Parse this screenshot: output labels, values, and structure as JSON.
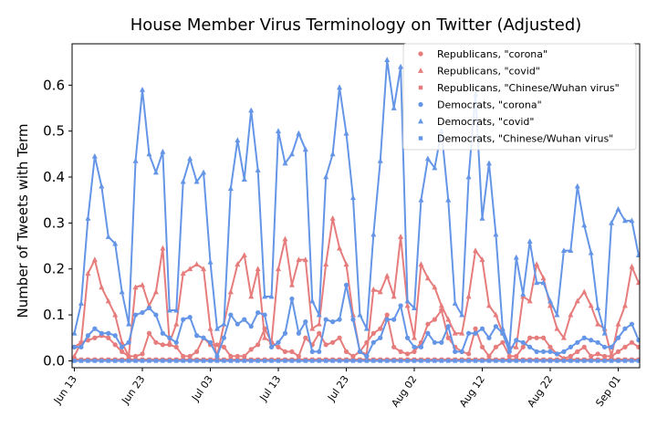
{
  "chart_data": {
    "type": "line",
    "title": "House Member Virus Terminology on Twitter (Adjusted)",
    "xlabel": "",
    "ylabel": "Number of Tweets with Term",
    "ylim": [
      -0.015,
      0.69
    ],
    "yticks": [
      0.0,
      0.1,
      0.2,
      0.3,
      0.4,
      0.5,
      0.6
    ],
    "ytick_labels": [
      "0.0",
      "0.1",
      "0.2",
      "0.3",
      "0.4",
      "0.5",
      "0.6"
    ],
    "x_start": "2020-06-13",
    "xticks": [
      "Jun 13",
      "Jun 23",
      "Jul 03",
      "Jul 13",
      "Jul 23",
      "Aug 02",
      "Aug 12",
      "Aug 22",
      "Sep 01"
    ],
    "legend_position": "top-right",
    "grid": false,
    "colors": {
      "republican": "#e67c7c",
      "democrat": "#6495e6"
    },
    "series": [
      {
        "name": "Republicans, \"corona\"",
        "party": "republican",
        "marker": "circle",
        "values": [
          0.03,
          0.04,
          0.045,
          0.05,
          0.055,
          0.05,
          0.035,
          0.02,
          0.01,
          0.01,
          0.015,
          0.06,
          0.04,
          0.035,
          0.035,
          0.03,
          0.01,
          0.01,
          0.02,
          0.05,
          0.035,
          0.035,
          0.03,
          0.01,
          0.01,
          0.01,
          0.025,
          0.035,
          0.07,
          0.04,
          0.03,
          0.02,
          0.02,
          0.01,
          0.05,
          0.035,
          0.06,
          0.035,
          0.04,
          0.05,
          0.02,
          0.01,
          0.02,
          0.04,
          0.06,
          0.07,
          0.1,
          0.03,
          0.02,
          0.015,
          0.02,
          0.04,
          0.08,
          0.09,
          0.11,
          0.05,
          0.03,
          0.02,
          0.015,
          0.07,
          0.03,
          0.01,
          0.03,
          0.04,
          0.01,
          0.01,
          0.03,
          0.05,
          0.05,
          0.05,
          0.03,
          0.015,
          0.005,
          0.01,
          0.02,
          0.03,
          0.01,
          0.015,
          0.01,
          0.01,
          0.02,
          0.03,
          0.04,
          0.03,
          0.03,
          0.02,
          0.005,
          0.01,
          0.02,
          0.03,
          0.04,
          0.03,
          0.03,
          0.04
        ]
      },
      {
        "name": "Republicans, \"covid\"",
        "party": "republican",
        "marker": "triangle",
        "values": [
          0.01,
          0.04,
          0.19,
          0.22,
          0.16,
          0.13,
          0.1,
          0.04,
          0.01,
          0.16,
          0.165,
          0.12,
          0.15,
          0.245,
          0.04,
          0.08,
          0.19,
          0.2,
          0.21,
          0.2,
          0.07,
          0.01,
          0.08,
          0.15,
          0.21,
          0.23,
          0.14,
          0.2,
          0.05,
          0.04,
          0.2,
          0.265,
          0.165,
          0.22,
          0.22,
          0.07,
          0.08,
          0.21,
          0.31,
          0.245,
          0.21,
          0.1,
          0.02,
          0.015,
          0.155,
          0.15,
          0.185,
          0.14,
          0.27,
          0.12,
          0.05,
          0.21,
          0.18,
          0.16,
          0.12,
          0.09,
          0.06,
          0.06,
          0.14,
          0.24,
          0.22,
          0.12,
          0.1,
          0.06,
          0.03,
          0.03,
          0.14,
          0.13,
          0.21,
          0.18,
          0.12,
          0.07,
          0.05,
          0.1,
          0.13,
          0.15,
          0.12,
          0.08,
          0.07,
          0.01,
          0.08,
          0.12,
          0.205,
          0.17,
          0.165,
          0.17
        ]
      },
      {
        "name": "Republicans, \"Chinese/Wuhan virus\"",
        "party": "republican",
        "marker": "square",
        "values": [
          0.003,
          0.003,
          0.003,
          0.003,
          0.003,
          0.003,
          0.003,
          0.003,
          0.003,
          0.003,
          0.003,
          0.003,
          0.003,
          0.003,
          0.003,
          0.003,
          0.003,
          0.003,
          0.003,
          0.003,
          0.003,
          0.003,
          0.003,
          0.003,
          0.003,
          0.003,
          0.003,
          0.003,
          0.003,
          0.003,
          0.003,
          0.003,
          0.003,
          0.003,
          0.003,
          0.003,
          0.003,
          0.003,
          0.003,
          0.003,
          0.003,
          0.003,
          0.003,
          0.003,
          0.003,
          0.003,
          0.003,
          0.003,
          0.003,
          0.003,
          0.003,
          0.003,
          0.003,
          0.003,
          0.003,
          0.003,
          0.003,
          0.003,
          0.003,
          0.003,
          0.003,
          0.003,
          0.003,
          0.003,
          0.003,
          0.003,
          0.003,
          0.003,
          0.003,
          0.003,
          0.003,
          0.003,
          0.003,
          0.003,
          0.003,
          0.003,
          0.003,
          0.003,
          0.003,
          0.003,
          0.003,
          0.003,
          0.003,
          0.003,
          0.003,
          0.003
        ]
      },
      {
        "name": "Democrats, \"corona\"",
        "party": "democrat",
        "marker": "circle",
        "values": [
          0.03,
          0.03,
          0.055,
          0.07,
          0.06,
          0.06,
          0.055,
          0.03,
          0.04,
          0.1,
          0.105,
          0.115,
          0.1,
          0.06,
          0.05,
          0.04,
          0.09,
          0.095,
          0.055,
          0.05,
          0.04,
          0.01,
          0.05,
          0.1,
          0.08,
          0.09,
          0.075,
          0.105,
          0.1,
          0.03,
          0.04,
          0.06,
          0.135,
          0.06,
          0.085,
          0.02,
          0.02,
          0.09,
          0.085,
          0.09,
          0.165,
          0.09,
          0.02,
          0.01,
          0.04,
          0.05,
          0.09,
          0.09,
          0.12,
          0.05,
          0.03,
          0.03,
          0.06,
          0.04,
          0.04,
          0.075,
          0.02,
          0.02,
          0.06,
          0.06,
          0.07,
          0.05,
          0.075,
          0.06,
          0.02,
          0.045,
          0.04,
          0.03,
          0.02,
          0.02,
          0.02,
          0.015,
          0.02,
          0.03,
          0.04,
          0.05,
          0.045,
          0.04,
          0.03,
          0.03,
          0.05,
          0.07,
          0.08,
          0.045,
          0.04,
          0.01
        ]
      },
      {
        "name": "Democrats, \"covid\"",
        "party": "democrat",
        "marker": "triangle",
        "values": [
          0.06,
          0.125,
          0.31,
          0.445,
          0.38,
          0.27,
          0.255,
          0.15,
          0.08,
          0.435,
          0.59,
          0.45,
          0.41,
          0.455,
          0.11,
          0.11,
          0.39,
          0.44,
          0.39,
          0.41,
          0.215,
          0.07,
          0.08,
          0.375,
          0.48,
          0.395,
          0.545,
          0.415,
          0.14,
          0.14,
          0.5,
          0.43,
          0.45,
          0.495,
          0.46,
          0.13,
          0.1,
          0.4,
          0.45,
          0.595,
          0.495,
          0.355,
          0.1,
          0.07,
          0.275,
          0.435,
          0.655,
          0.55,
          0.64,
          0.13,
          0.115,
          0.35,
          0.44,
          0.42,
          0.5,
          0.35,
          0.125,
          0.1,
          0.4,
          0.58,
          0.31,
          0.43,
          0.275,
          0.07,
          0.03,
          0.225,
          0.145,
          0.26,
          0.17,
          0.17,
          0.13,
          0.1,
          0.24,
          0.24,
          0.38,
          0.295,
          0.235,
          0.115,
          0.06,
          0.3,
          0.33,
          0.305,
          0.305,
          0.23
        ]
      },
      {
        "name": "Democrats, \"Chinese/Wuhan virus\"",
        "party": "democrat",
        "marker": "square",
        "values": [
          0.0,
          0.0,
          0.0,
          0.0,
          0.0,
          0.0,
          0.0,
          0.0,
          0.0,
          0.0,
          0.0,
          0.0,
          0.0,
          0.0,
          0.0,
          0.0,
          0.0,
          0.0,
          0.0,
          0.0,
          0.0,
          0.0,
          0.0,
          0.0,
          0.0,
          0.0,
          0.0,
          0.0,
          0.0,
          0.0,
          0.0,
          0.0,
          0.0,
          0.0,
          0.0,
          0.0,
          0.0,
          0.0,
          0.0,
          0.0,
          0.0,
          0.0,
          0.0,
          0.0,
          0.0,
          0.0,
          0.0,
          0.0,
          0.0,
          0.0,
          0.0,
          0.0,
          0.0,
          0.0,
          0.0,
          0.0,
          0.0,
          0.0,
          0.0,
          0.0,
          0.0,
          0.0,
          0.0,
          0.0,
          0.0,
          0.0,
          0.0,
          0.0,
          0.0,
          0.0,
          0.0,
          0.0,
          0.0,
          0.0,
          0.0,
          0.0,
          0.0,
          0.0,
          0.0,
          0.0,
          0.0,
          0.0,
          0.0,
          0.0,
          0.0,
          0.0
        ]
      }
    ]
  }
}
